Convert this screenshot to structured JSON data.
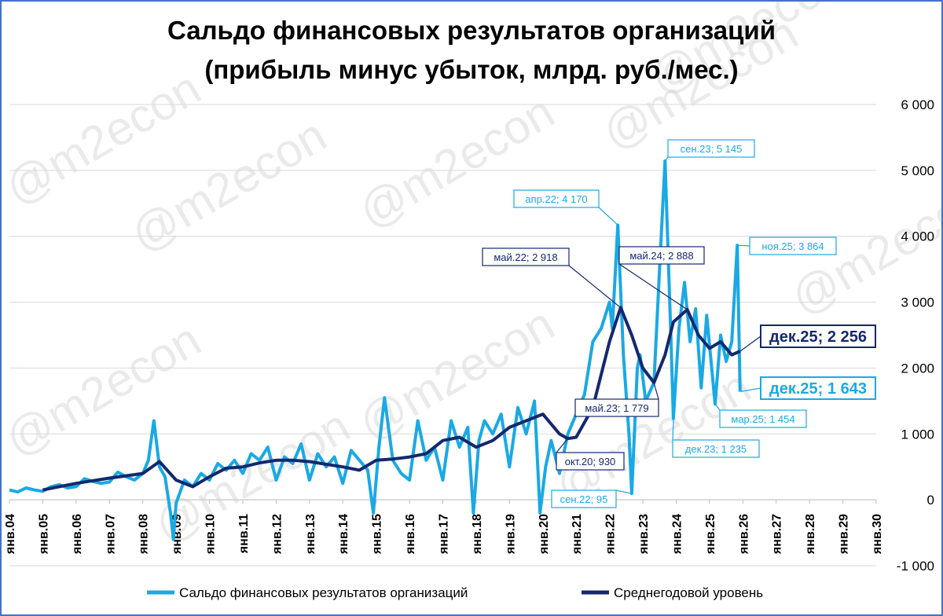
{
  "chart_data": {
    "type": "line",
    "title_line1": "Сальдо финансовых результатов организаций",
    "title_line2": "(прибыль минус убыток, млрд. руб./мес.)",
    "watermark": "@m2econ",
    "ylim": [
      -1000,
      6000
    ],
    "yticks": [
      "-1 000",
      "0",
      "1 000",
      "2 000",
      "3 000",
      "4 000",
      "5 000",
      "6 000"
    ],
    "ytick_values": [
      -1000,
      0,
      1000,
      2000,
      3000,
      4000,
      5000,
      6000
    ],
    "x_range_years": [
      2004,
      2030
    ],
    "xticks": [
      "янв.04",
      "янв.05",
      "янв.06",
      "янв.07",
      "янв.08",
      "янв.09",
      "янв.10",
      "янв.11",
      "янв.12",
      "янв.13",
      "янв.14",
      "янв.15",
      "янв.16",
      "янв.17",
      "янв.18",
      "янв.19",
      "янв.20",
      "янв.21",
      "янв.22",
      "янв.23",
      "янв.24",
      "янв.25",
      "янв.26",
      "янв.27",
      "янв.28",
      "янв.29",
      "янв.30"
    ],
    "grid": true,
    "legend_position": "bottom",
    "series": [
      {
        "name": "Сальдо финансовых результатов организаций",
        "color": "#1aa9e4",
        "points": [
          [
            "2004-01",
            150
          ],
          [
            "2004-04",
            120
          ],
          [
            "2004-07",
            180
          ],
          [
            "2004-10",
            150
          ],
          [
            "2005-01",
            130
          ],
          [
            "2005-04",
            200
          ],
          [
            "2005-07",
            230
          ],
          [
            "2005-10",
            180
          ],
          [
            "2006-01",
            200
          ],
          [
            "2006-04",
            320
          ],
          [
            "2006-07",
            280
          ],
          [
            "2006-10",
            250
          ],
          [
            "2007-01",
            270
          ],
          [
            "2007-04",
            420
          ],
          [
            "2007-07",
            350
          ],
          [
            "2007-10",
            300
          ],
          [
            "2008-01",
            400
          ],
          [
            "2008-03",
            600
          ],
          [
            "2008-05",
            1200
          ],
          [
            "2008-07",
            500
          ],
          [
            "2008-09",
            350
          ],
          [
            "2008-11",
            -200
          ],
          [
            "2008-12",
            -600
          ],
          [
            "2009-01",
            -50
          ],
          [
            "2009-04",
            300
          ],
          [
            "2009-07",
            200
          ],
          [
            "2009-10",
            400
          ],
          [
            "2010-01",
            300
          ],
          [
            "2010-04",
            550
          ],
          [
            "2010-07",
            450
          ],
          [
            "2010-10",
            600
          ],
          [
            "2011-01",
            400
          ],
          [
            "2011-04",
            700
          ],
          [
            "2011-07",
            600
          ],
          [
            "2011-10",
            800
          ],
          [
            "2012-01",
            300
          ],
          [
            "2012-04",
            650
          ],
          [
            "2012-07",
            550
          ],
          [
            "2012-10",
            850
          ],
          [
            "2013-01",
            300
          ],
          [
            "2013-04",
            700
          ],
          [
            "2013-07",
            500
          ],
          [
            "2013-10",
            650
          ],
          [
            "2014-01",
            250
          ],
          [
            "2014-04",
            750
          ],
          [
            "2014-07",
            600
          ],
          [
            "2014-10",
            450
          ],
          [
            "2014-12",
            -200
          ],
          [
            "2015-02",
            800
          ],
          [
            "2015-04",
            1550
          ],
          [
            "2015-07",
            600
          ],
          [
            "2015-10",
            400
          ],
          [
            "2016-01",
            300
          ],
          [
            "2016-04",
            1200
          ],
          [
            "2016-07",
            600
          ],
          [
            "2016-10",
            800
          ],
          [
            "2017-01",
            300
          ],
          [
            "2017-04",
            1200
          ],
          [
            "2017-07",
            800
          ],
          [
            "2017-10",
            1100
          ],
          [
            "2017-12",
            -200
          ],
          [
            "2018-02",
            900
          ],
          [
            "2018-04",
            1200
          ],
          [
            "2018-07",
            1000
          ],
          [
            "2018-10",
            1300
          ],
          [
            "2019-01",
            500
          ],
          [
            "2019-04",
            1400
          ],
          [
            "2019-07",
            1000
          ],
          [
            "2019-10",
            1500
          ],
          [
            "2019-12",
            -200
          ],
          [
            "2020-02",
            500
          ],
          [
            "2020-04",
            900
          ],
          [
            "2020-07",
            400
          ],
          [
            "2020-10",
            1000
          ],
          [
            "2021-01",
            1300
          ],
          [
            "2021-04",
            1600
          ],
          [
            "2021-07",
            2400
          ],
          [
            "2021-10",
            2600
          ],
          [
            "2022-01",
            3000
          ],
          [
            "2022-02",
            2600
          ],
          [
            "2022-04",
            4170
          ],
          [
            "2022-06",
            2200
          ],
          [
            "2022-08",
            1000
          ],
          [
            "2022-09",
            95
          ],
          [
            "2022-11",
            2000
          ],
          [
            "2022-12",
            2200
          ],
          [
            "2023-02",
            1500
          ],
          [
            "2023-05",
            1779
          ],
          [
            "2023-07",
            3500
          ],
          [
            "2023-09",
            5145
          ],
          [
            "2023-11",
            2600
          ],
          [
            "2023-12",
            1235
          ],
          [
            "2024-02",
            2600
          ],
          [
            "2024-04",
            3300
          ],
          [
            "2024-06",
            2400
          ],
          [
            "2024-08",
            2900
          ],
          [
            "2024-10",
            1700
          ],
          [
            "2024-12",
            2800
          ],
          [
            "2025-03",
            1454
          ],
          [
            "2025-05",
            2500
          ],
          [
            "2025-07",
            2100
          ],
          [
            "2025-09",
            2400
          ],
          [
            "2025-11",
            3864
          ],
          [
            "2025-12",
            1643
          ]
        ]
      },
      {
        "name": "Среднегодовой уровень",
        "color": "#14286e",
        "points": [
          [
            "2005-01",
            150
          ],
          [
            "2006-01",
            250
          ],
          [
            "2007-01",
            330
          ],
          [
            "2008-01",
            400
          ],
          [
            "2008-07",
            580
          ],
          [
            "2009-01",
            300
          ],
          [
            "2009-07",
            200
          ],
          [
            "2010-01",
            350
          ],
          [
            "2010-07",
            480
          ],
          [
            "2011-01",
            500
          ],
          [
            "2011-07",
            560
          ],
          [
            "2012-01",
            600
          ],
          [
            "2012-07",
            600
          ],
          [
            "2013-01",
            580
          ],
          [
            "2013-07",
            540
          ],
          [
            "2014-01",
            500
          ],
          [
            "2014-07",
            450
          ],
          [
            "2015-01",
            600
          ],
          [
            "2015-07",
            620
          ],
          [
            "2016-01",
            650
          ],
          [
            "2016-07",
            700
          ],
          [
            "2017-01",
            900
          ],
          [
            "2017-07",
            950
          ],
          [
            "2018-01",
            800
          ],
          [
            "2018-07",
            900
          ],
          [
            "2019-01",
            1100
          ],
          [
            "2019-07",
            1200
          ],
          [
            "2020-01",
            1300
          ],
          [
            "2020-07",
            1000
          ],
          [
            "2020-10",
            930
          ],
          [
            "2021-01",
            950
          ],
          [
            "2021-07",
            1400
          ],
          [
            "2021-10",
            1900
          ],
          [
            "2022-01",
            2400
          ],
          [
            "2022-05",
            2918
          ],
          [
            "2022-09",
            2500
          ],
          [
            "2023-01",
            2000
          ],
          [
            "2023-05",
            1779
          ],
          [
            "2023-09",
            2200
          ],
          [
            "2023-12",
            2700
          ],
          [
            "2024-05",
            2888
          ],
          [
            "2024-09",
            2500
          ],
          [
            "2025-01",
            2300
          ],
          [
            "2025-05",
            2400
          ],
          [
            "2025-09",
            2200
          ],
          [
            "2025-12",
            2256
          ]
        ]
      }
    ],
    "annotations": [
      {
        "text": "апр.22; 4 170",
        "style": "light"
      },
      {
        "text": "сен.23; 5 145",
        "style": "light"
      },
      {
        "text": "ноя.25; 3 864",
        "style": "light"
      },
      {
        "text": "май.22; 2 918",
        "style": "dark"
      },
      {
        "text": "май.24; 2 888",
        "style": "dark"
      },
      {
        "text": "дек.25; 2 256",
        "style": "dark-big"
      },
      {
        "text": "дек.25; 1 643",
        "style": "light-big"
      },
      {
        "text": "май.23; 1 779",
        "style": "dark"
      },
      {
        "text": "мар.25; 1 454",
        "style": "light"
      },
      {
        "text": "дек.23; 1 235",
        "style": "light"
      },
      {
        "text": "окт.20; 930",
        "style": "dark"
      },
      {
        "text": "сен.22; 95",
        "style": "light"
      }
    ]
  }
}
